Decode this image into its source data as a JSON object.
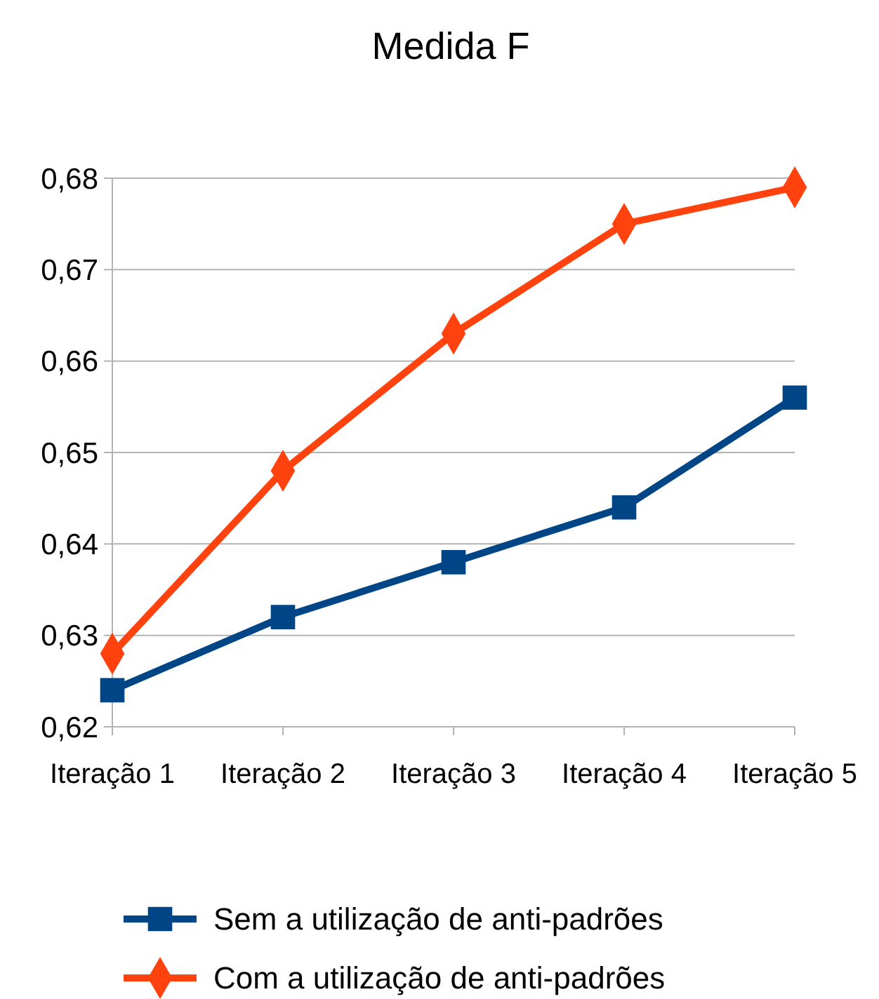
{
  "chart_data": {
    "type": "line",
    "title": "Medida F",
    "categories": [
      "Iteração 1",
      "Iteração 2",
      "Iteração 3",
      "Iteração 4",
      "Iteração 5"
    ],
    "series": [
      {
        "name": "Sem a utilização de anti-padrões",
        "color": "#004586",
        "marker": "square",
        "values": [
          0.624,
          0.632,
          0.638,
          0.644,
          0.656
        ]
      },
      {
        "name": "Com a utilização de anti-padrões",
        "color": "#ff420e",
        "marker": "diamond",
        "values": [
          0.628,
          0.648,
          0.663,
          0.675,
          0.679
        ]
      }
    ],
    "ylim": [
      0.62,
      0.68
    ],
    "yticks": [
      {
        "value": 0.62,
        "label": "0,62"
      },
      {
        "value": 0.63,
        "label": "0,63"
      },
      {
        "value": 0.64,
        "label": "0,64"
      },
      {
        "value": 0.65,
        "label": "0,65"
      },
      {
        "value": 0.66,
        "label": "0,66"
      },
      {
        "value": 0.67,
        "label": "0,67"
      },
      {
        "value": 0.68,
        "label": "0,68"
      }
    ],
    "grid": "y",
    "legend": "bottom",
    "line_style": "solid"
  }
}
